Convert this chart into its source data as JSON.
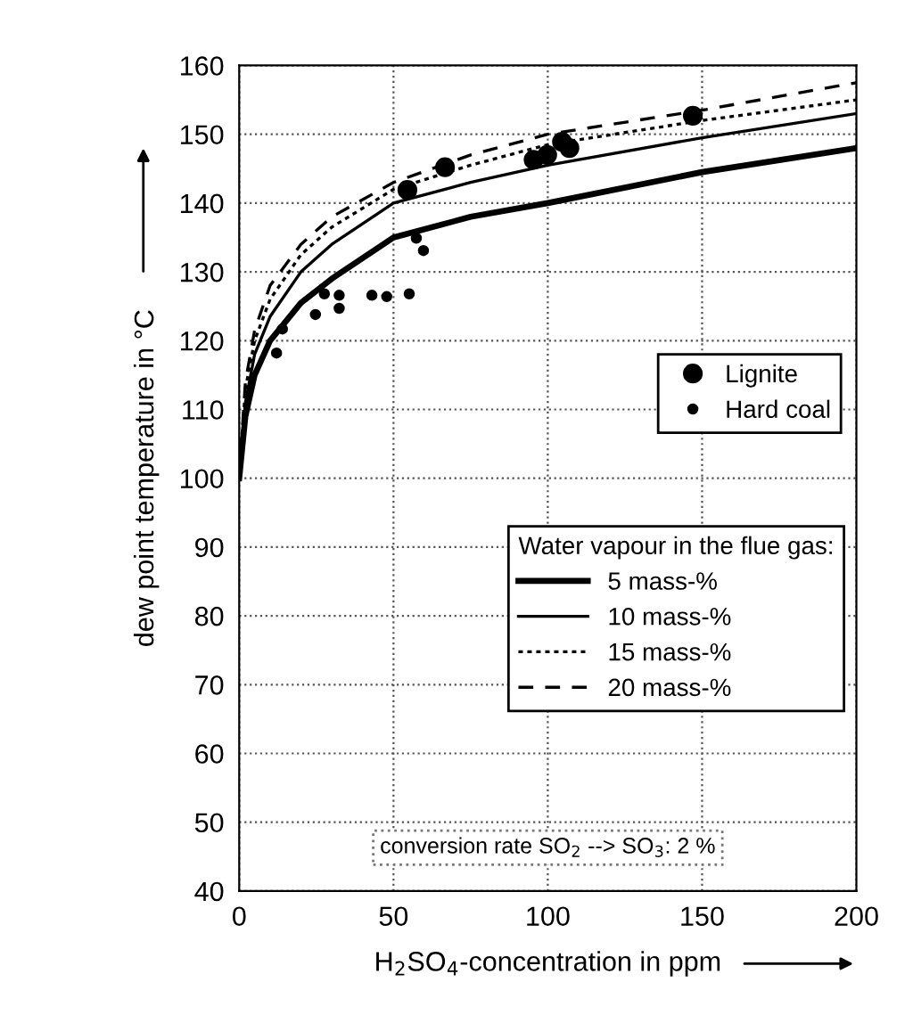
{
  "chart_data": {
    "type": "line",
    "xlabel": "H$_{2}$SO$_{4}$-concentration in ppm",
    "ylabel": "dew point temperature in °C",
    "legend_title": "Water vapour in the flue gas:",
    "xlim": [
      0,
      200
    ],
    "xticks": [
      0,
      50,
      100,
      150,
      200
    ],
    "ylim": [
      40,
      160
    ],
    "yticks": [
      40,
      50,
      60,
      70,
      80,
      90,
      100,
      110,
      120,
      130,
      140,
      150,
      160
    ],
    "grid": true,
    "legend": "right",
    "annotations": [
      "conversion rate SO$_{2}$ --> SO$_{3}$: 2 %"
    ],
    "series": [
      {
        "name": "Lignite",
        "type": "scatter",
        "marker": "circle",
        "color": "#000000",
        "x": [
          54.5,
          66.7,
          95.4,
          99.8,
          104.6,
          107,
          147
        ],
        "values": [
          141.9,
          145.2,
          146.3,
          147,
          148.9,
          148,
          152.7
        ]
      },
      {
        "name": "Hard coal",
        "type": "scatter",
        "marker": "circle",
        "color": "#000000",
        "x": [
          12.1,
          14,
          24.7,
          27.6,
          32.4,
          32.4,
          43,
          47.8,
          55.1,
          57.4,
          59.7
        ],
        "values": [
          118.2,
          121.7,
          123.8,
          126.8,
          124.7,
          126.6,
          126.6,
          126.4,
          126.8,
          134.9,
          133.1
        ]
      },
      {
        "name": "5 mass-%",
        "line_style": "solid",
        "color": "#000000",
        "x": [
          0,
          2,
          5,
          10,
          20,
          30,
          50,
          75,
          100,
          150,
          200
        ],
        "values": [
          100,
          109,
          115,
          120,
          125.5,
          129,
          135,
          138,
          140,
          144.5,
          148
        ]
      },
      {
        "name": "10 mass-%",
        "line_style": "solid",
        "color": "#000000",
        "x": [
          0,
          2,
          5,
          10,
          20,
          30,
          50,
          75,
          100,
          150,
          200
        ],
        "values": [
          100,
          111,
          118,
          123.5,
          130,
          134,
          140,
          143,
          145.5,
          149.5,
          153
        ]
      },
      {
        "name": "15 mass-%",
        "line_style": "dotted",
        "color": "#000000",
        "x": [
          0,
          2,
          5,
          10,
          20,
          30,
          50,
          75,
          100,
          150,
          200
        ],
        "values": [
          100,
          113,
          120,
          126,
          132.5,
          136.5,
          142,
          145.5,
          148.5,
          152,
          155
        ]
      },
      {
        "name": "20 mass-%",
        "line_style": "dashed",
        "color": "#000000",
        "x": [
          0,
          2,
          5,
          10,
          20,
          30,
          50,
          75,
          100,
          150,
          200
        ],
        "values": [
          100,
          114,
          121.5,
          128,
          134,
          138,
          143,
          147,
          150,
          153.5,
          157.5
        ]
      }
    ]
  }
}
